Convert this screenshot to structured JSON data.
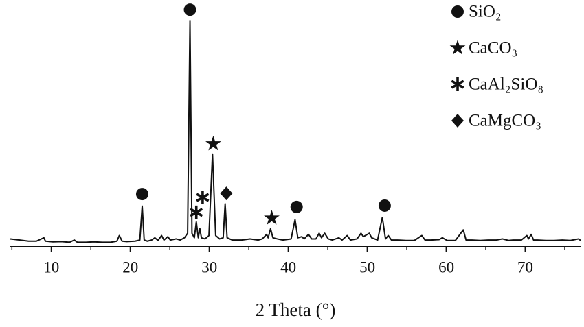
{
  "chart_data": {
    "type": "line",
    "xlabel": "2 Theta (°)",
    "xlim": [
      4.8,
      77
    ],
    "ylim": [
      0,
      110
    ],
    "xticks": [
      10,
      20,
      30,
      40,
      50,
      60,
      70
    ],
    "xminorticks": [
      5,
      15,
      25,
      35,
      45,
      55,
      65,
      75
    ],
    "x": [
      4.8,
      6.0,
      7.1,
      8.1,
      9.05,
      9.25,
      10.2,
      11.25,
      12.3,
      12.9,
      13.3,
      14.35,
      15.4,
      16.45,
      17.5,
      18.3,
      18.6,
      18.95,
      19.55,
      20.6,
      21.2,
      21.5,
      21.75,
      22.15,
      22.7,
      23.1,
      23.5,
      23.95,
      24.25,
      24.75,
      25.05,
      25.8,
      26.3,
      26.85,
      27.25,
      27.55,
      27.8,
      28.1,
      28.35,
      28.6,
      28.8,
      29.0,
      29.45,
      29.95,
      30.4,
      30.8,
      31.3,
      31.75,
      32.0,
      32.25,
      32.9,
      33.6,
      34.1,
      35.15,
      36.2,
      36.7,
      37.25,
      37.45,
      37.75,
      38.05,
      38.6,
      39.3,
      40.35,
      40.85,
      41.2,
      41.7,
      42.0,
      42.55,
      42.95,
      43.5,
      43.9,
      44.2,
      44.6,
      45.05,
      45.55,
      46.4,
      46.8,
      47.45,
      47.85,
      48.7,
      49.2,
      49.5,
      50.25,
      50.55,
      51.3,
      51.9,
      52.3,
      52.65,
      53.05,
      53.9,
      54.9,
      55.95,
      56.9,
      57.3,
      58.05,
      59.1,
      59.5,
      60.1,
      61.15,
      62.15,
      62.5,
      63.25,
      64.3,
      65.3,
      66.35,
      67.1,
      67.9,
      68.45,
      69.5,
      70.2,
      70.4,
      70.75,
      71.05,
      71.55,
      72.6,
      73.65,
      74.7,
      75.7,
      76.75,
      77
    ],
    "series": [
      {
        "color": "#111111",
        "values": [
          3.5,
          3,
          2.5,
          2.5,
          4,
          2.5,
          2.2,
          2.3,
          2,
          3,
          2,
          2,
          2.2,
          2,
          2,
          2.5,
          5,
          2.5,
          2.3,
          2.5,
          3,
          18,
          3,
          2.5,
          3,
          4,
          2.8,
          5,
          3,
          4.5,
          3,
          3.5,
          3,
          4,
          6,
          100,
          6,
          4,
          11,
          4,
          8,
          4,
          3.5,
          5,
          41,
          5,
          3.5,
          4,
          19,
          4,
          3,
          3,
          3,
          3.5,
          3,
          3.5,
          5.5,
          4,
          8,
          4,
          3.5,
          3,
          3.5,
          12,
          4,
          4.5,
          3.5,
          5.5,
          3.5,
          3.5,
          6,
          4,
          6,
          3.5,
          3,
          4,
          3,
          5,
          3,
          3.5,
          6,
          4.5,
          6,
          4,
          3,
          13,
          3.5,
          5,
          3,
          3,
          2.8,
          2.8,
          5,
          3,
          3,
          3.2,
          4,
          2.8,
          2.8,
          7.5,
          3,
          3,
          2.8,
          3,
          3,
          3.5,
          2.8,
          3,
          3,
          5,
          3.5,
          5.5,
          3,
          3,
          2.8,
          2.8,
          3,
          2.8,
          3.5,
          2.8
        ]
      }
    ],
    "legend": [
      {
        "label": "SiO₂",
        "marker": "circle"
      },
      {
        "label": "CaCO₃",
        "marker": "star"
      },
      {
        "label": "CaAl₂SiO₈",
        "marker": "asterisk"
      },
      {
        "label": "CaMgCO₃",
        "marker": "diamond"
      }
    ],
    "annotations": [
      {
        "x": 21.5,
        "y": 23.3,
        "phase": 0
      },
      {
        "x": 27.55,
        "y": 104.8,
        "phase": 0
      },
      {
        "x": 28.35,
        "y": 15.2,
        "phase": 2
      },
      {
        "x": 29.15,
        "y": 21.8,
        "phase": 2
      },
      {
        "x": 30.5,
        "y": 45.5,
        "phase": 1
      },
      {
        "x": 32.15,
        "y": 23.6,
        "phase": 3
      },
      {
        "x": 37.9,
        "y": 12.7,
        "phase": 1
      },
      {
        "x": 41.05,
        "y": 17.6,
        "phase": 0
      },
      {
        "x": 52.2,
        "y": 18.2,
        "phase": 0
      }
    ]
  }
}
